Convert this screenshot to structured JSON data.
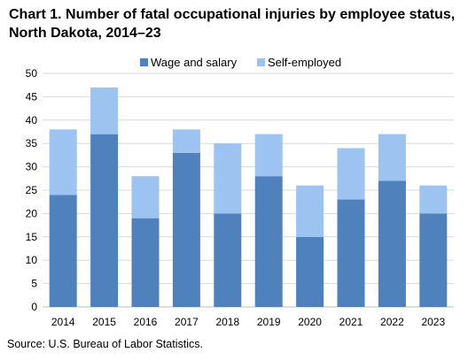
{
  "chart_data": {
    "type": "bar",
    "stacked": true,
    "title": "Chart 1. Number of fatal occupational injuries by employee status, North Dakota, 2014–23",
    "xlabel": "",
    "ylabel": "",
    "categories": [
      "2014",
      "2015",
      "2016",
      "2017",
      "2018",
      "2019",
      "2020",
      "2021",
      "2022",
      "2023"
    ],
    "series": [
      {
        "name": "Wage and salary",
        "color": "#4f81bd",
        "values": [
          24,
          37,
          19,
          33,
          20,
          28,
          15,
          23,
          27,
          20
        ]
      },
      {
        "name": "Self-employed",
        "color": "#9dc3f0",
        "values": [
          14,
          10,
          9,
          5,
          15,
          9,
          11,
          11,
          10,
          6
        ]
      }
    ],
    "ylim": [
      0,
      50
    ],
    "yticks": [
      0,
      5,
      10,
      15,
      20,
      25,
      30,
      35,
      40,
      45,
      50
    ],
    "grid": true,
    "legend_position": "top-center"
  },
  "source": "Source: U.S. Bureau of Labor Statistics."
}
